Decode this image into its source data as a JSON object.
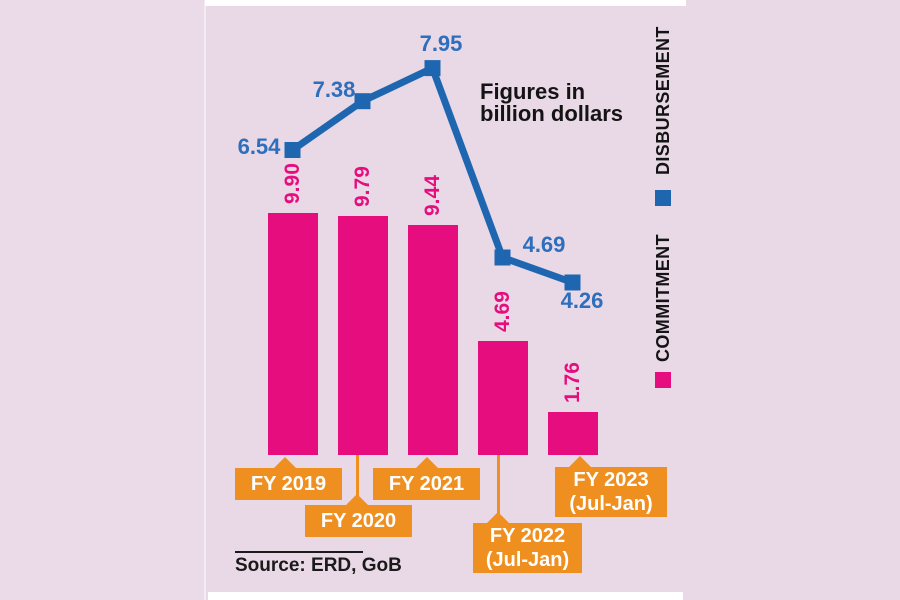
{
  "annotation": {
    "line1": "Figures in",
    "line2": "billion dollars"
  },
  "source": {
    "text": "Source: ERD, GoB"
  },
  "legend": {
    "items": [
      {
        "label": "DISBURSEMENT",
        "color": "#1e66b0"
      },
      {
        "label": "COMMITMENT",
        "color": "#e60d7e"
      }
    ]
  },
  "colors": {
    "background": "#e9d8e6",
    "bar": "#e60d7e",
    "line": "#1e66b0",
    "line_label": "#2d6fbc",
    "category_box": "#ef8f1f",
    "note_text": "#141414"
  },
  "chart_data": {
    "type": "bar",
    "title": "Figures in billion dollars",
    "unit": "billion dollars",
    "source": "Source: ERD, GoB",
    "categories": [
      "FY 2019",
      "FY 2020",
      "FY 2021",
      "FY 2022 (Jul-Jan)",
      "FY 2023 (Jul-Jan)"
    ],
    "category_lines": [
      [
        "FY 2019"
      ],
      [
        "FY 2020"
      ],
      [
        "FY 2021"
      ],
      [
        "FY 2022",
        "(Jul-Jan)"
      ],
      [
        "FY 2023",
        "(Jul-Jan)"
      ]
    ],
    "series": [
      {
        "name": "COMMITMENT",
        "type": "bar",
        "color": "#e60d7e",
        "values": [
          9.9,
          9.79,
          9.44,
          4.69,
          1.76
        ],
        "labels": [
          "9.90",
          "9.79",
          "9.44",
          "4.69",
          "1.76"
        ]
      },
      {
        "name": "DISBURSEMENT",
        "type": "line",
        "color": "#1e66b0",
        "values": [
          6.54,
          7.38,
          7.95,
          4.69,
          4.26
        ],
        "labels": [
          "6.54",
          "7.38",
          "7.95",
          "4.69",
          "4.26"
        ]
      }
    ],
    "ylim": [
      0,
      10
    ],
    "grid": false,
    "value_labels": true,
    "legend_position": "right-vertical"
  }
}
